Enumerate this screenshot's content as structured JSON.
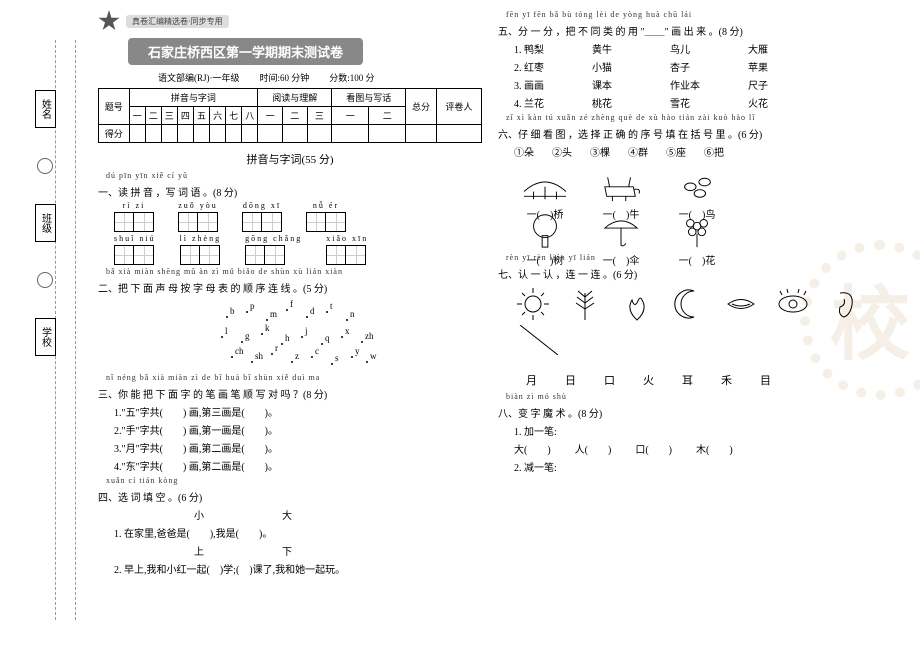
{
  "colors": {
    "text": "#000000",
    "bg": "#ffffff",
    "banner_bg": "#888888",
    "banner_fg": "#ffffff",
    "tag_bg": "#dddddd",
    "watermark": "#f0e6d8",
    "line": "#999999"
  },
  "fonts": {
    "family": "SimSun",
    "base_size": 10,
    "pinyin_size": 8,
    "title_size": 13
  },
  "margin_labels": {
    "a": "姓名",
    "b": "班级",
    "c": "学校"
  },
  "header": {
    "tag": "真卷汇编精选卷·同步专用",
    "title": "石家庄桥西区第一学期期末测试卷",
    "edition": "语文部编(RJ)·一年级",
    "time": "时间:60 分钟",
    "score": "分数:100 分"
  },
  "score_table": {
    "row1": "题号",
    "row2": "得分",
    "g1": "拼音与字词",
    "g2": "阅读与理解",
    "g3": "看图与写话",
    "total": "总分",
    "marker": "评卷人",
    "cols": [
      "一",
      "二",
      "三",
      "四",
      "五",
      "六",
      "七",
      "八",
      "一",
      "二",
      "三",
      "一",
      "二"
    ]
  },
  "section_title": "拼音与字词(55 分)",
  "q1": {
    "pinyin": "dú pīn yīn  xiě cí yǔ",
    "title": "一、读 拼 音 ，写 词 语 。(8 分)",
    "groups": [
      {
        "p": "rì   zi",
        "n": 2
      },
      {
        "p": "zuǒ  yòu",
        "n": 2
      },
      {
        "p": "dōng  xī",
        "n": 2
      },
      {
        "p": "nǚ   ér",
        "n": 2
      },
      {
        "p": "shuǐ  niú",
        "n": 2
      },
      {
        "p": "lì  zhèng",
        "n": 2
      },
      {
        "p": "gōng chǎng",
        "n": 2
      },
      {
        "p": "xiǎo  xīn",
        "n": 2
      }
    ]
  },
  "q2": {
    "pinyin": "bǎ xià miàn shēng mǔ àn zì mǔ biǎo de shùn xù lián xiàn",
    "title": "二、把 下 面   声   母 按 字 母 表 的 顺 序 连 线 。(5 分)",
    "letters": [
      "b",
      "p",
      "m",
      "f",
      "d",
      "t",
      "n",
      "l",
      "g",
      "k",
      "h",
      "j",
      "q",
      "x",
      "zh",
      "ch",
      "sh",
      "r",
      "z",
      "c",
      "s",
      "y",
      "w"
    ]
  },
  "q3": {
    "pinyin": "nǐ néng bǎ xià miàn zì de bǐ huà bǐ shùn xiě duì ma",
    "title": "三、你 能 把 下 面 字 的 笔 画 笔 顺 写 对 吗 ？(8 分)",
    "lines": [
      "1.\"五\"字共(　　) 画,第三画是(　　)。",
      "2.\"手\"字共(　　) 画,第一画是(　　)。",
      "3.\"月\"字共(　　) 画,第二画是(　　)。",
      "4.\"东\"字共(　　) 画,第二画是(　　)。"
    ]
  },
  "q4": {
    "pinyin": "xuǎn cí tián kòng",
    "title": "四、选 词 填 空 。(6 分)",
    "pair1": {
      "a": "小",
      "b": "大"
    },
    "line1": "1. 在家里,爸爸是(　　),我是(　　)。",
    "pair2": {
      "a": "上",
      "b": "下"
    },
    "line2": "2. 早上,我和小红一起(　)学;(　)课了,我和她一起玩。"
  },
  "q5": {
    "pinyin": "fēn yī fēn   bǎ bù tóng lèi de yòng            huà chū lái",
    "title": "五、分 一 分 ，把 不 同 类 的 用 \"＿＿\" 画 出 来 。(8 分)",
    "rows": [
      [
        "1. 鸭梨",
        "黄牛",
        "鸟儿",
        "大雁"
      ],
      [
        "2. 红枣",
        "小猫",
        "杏子",
        "苹果"
      ],
      [
        "3. 画画",
        "课本",
        "作业本",
        "尺子"
      ],
      [
        "4. 兰花",
        "桃花",
        "雪花",
        "火花"
      ]
    ]
  },
  "q6": {
    "pinyin": "zǐ xì kàn tú  xuǎn zé zhèng què de xù hào tián zài kuò hào lǐ",
    "title": "六、仔 细 看 图 ，选 择 正   确 的 序 号 填 在 括 号 里 。(6 分)",
    "options": [
      "①朵",
      "②头",
      "③棵",
      "④群",
      "⑤座",
      "⑥把"
    ],
    "items": [
      "桥",
      "牛",
      "鸟",
      "树",
      "伞",
      "花"
    ]
  },
  "q7": {
    "pinyin": "rèn yī rèn  lián yī lián",
    "title": "七、认 一 认 ，连 一 连 。(6 分)",
    "icons": [
      "sun",
      "grain",
      "fire",
      "moon",
      "mouth",
      "eye",
      "ear"
    ],
    "chars": [
      "月",
      "日",
      "口",
      "火",
      "耳",
      "禾",
      "目"
    ]
  },
  "q8": {
    "pinyin": "biàn zì mó shù",
    "title": "八、变 字 魔 术 。(8 分)",
    "add": "1. 加一笔:",
    "add_items": [
      "大(　　)",
      "人(　　)",
      "口(　　)",
      "木(　　)"
    ],
    "sub": "2. 减一笔:"
  }
}
